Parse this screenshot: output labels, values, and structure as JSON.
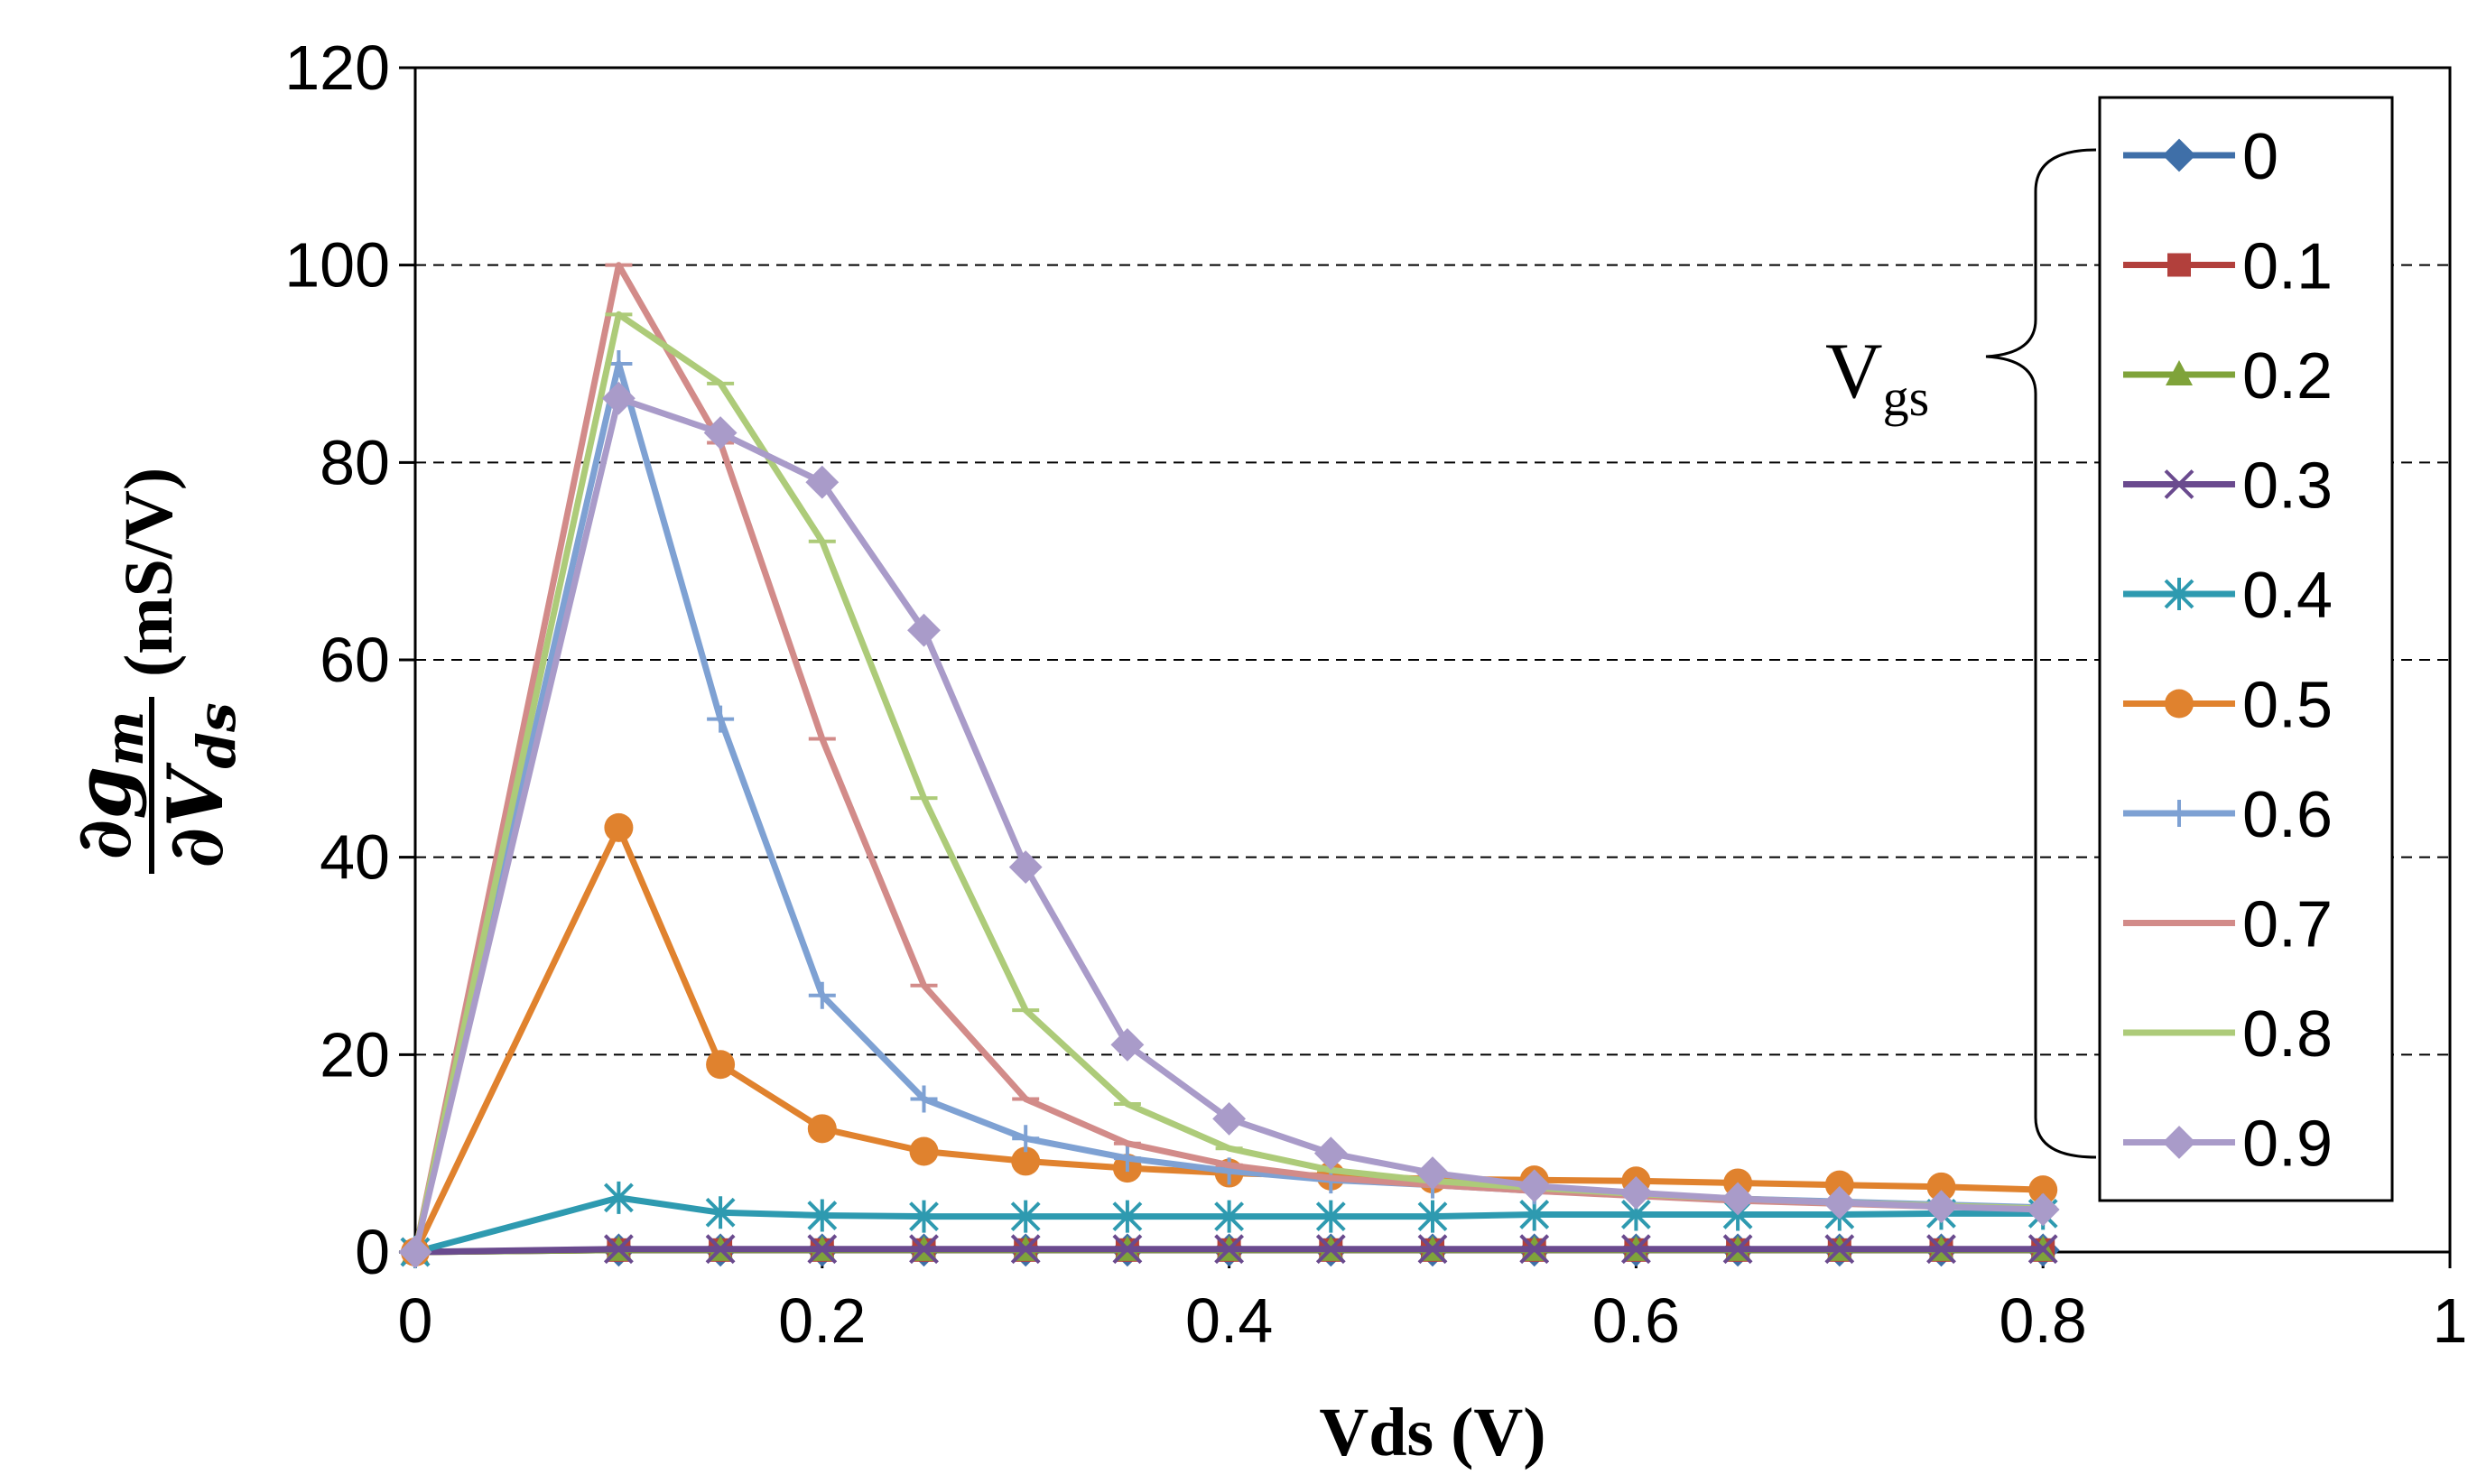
{
  "chart_data": {
    "type": "line",
    "title": "",
    "xlabel": "Vds (V)",
    "ylabel": {
      "numerator_symbol": "∂",
      "numerator_var": "g",
      "numerator_sub": "m",
      "denominator_symbol": "∂",
      "denominator_var": "V",
      "denominator_sub": "ds",
      "units": "(mS/V)"
    },
    "xlim": [
      0,
      1
    ],
    "ylim": [
      0,
      120
    ],
    "xticks": [
      "0",
      "0.2",
      "0.4",
      "0.6",
      "0.8",
      "1"
    ],
    "yticks": [
      "0",
      "20",
      "40",
      "60",
      "80",
      "100",
      "120"
    ],
    "grid": "horizontal dashed",
    "legend_position": "right",
    "legend_group_label": {
      "main": "V",
      "sub": "gs"
    },
    "x": [
      0,
      0.1,
      0.15,
      0.2,
      0.25,
      0.3,
      0.35,
      0.4,
      0.45,
      0.5,
      0.55,
      0.6,
      0.65,
      0.7,
      0.75,
      0.8
    ],
    "series": [
      {
        "name": "0",
        "color": "#3F6FA8",
        "marker": "diamond",
        "values": [
          0,
          0.2,
          0.2,
          0.2,
          0.2,
          0.2,
          0.2,
          0.2,
          0.2,
          0.2,
          0.2,
          0.2,
          0.2,
          0.2,
          0.2,
          0.2
        ]
      },
      {
        "name": "0.1",
        "color": "#B2403C",
        "marker": "square",
        "values": [
          0,
          0.2,
          0.2,
          0.2,
          0.2,
          0.2,
          0.2,
          0.2,
          0.2,
          0.2,
          0.2,
          0.2,
          0.2,
          0.2,
          0.2,
          0.2
        ]
      },
      {
        "name": "0.2",
        "color": "#7FA33A",
        "marker": "triangle",
        "values": [
          0,
          0.2,
          0.2,
          0.2,
          0.2,
          0.2,
          0.2,
          0.2,
          0.2,
          0.2,
          0.2,
          0.2,
          0.2,
          0.2,
          0.2,
          0.2
        ]
      },
      {
        "name": "0.3",
        "color": "#6A4A8E",
        "marker": "x",
        "values": [
          0,
          0.3,
          0.3,
          0.3,
          0.3,
          0.3,
          0.3,
          0.3,
          0.3,
          0.3,
          0.3,
          0.3,
          0.3,
          0.3,
          0.3,
          0.3
        ]
      },
      {
        "name": "0.4",
        "color": "#2E9AB0",
        "marker": "star",
        "values": [
          0,
          5.5,
          4,
          3.7,
          3.6,
          3.6,
          3.6,
          3.6,
          3.6,
          3.6,
          3.8,
          3.8,
          3.8,
          3.8,
          3.9,
          3.9
        ]
      },
      {
        "name": "0.5",
        "color": "#E0822E",
        "marker": "circle",
        "values": [
          0,
          43,
          19,
          12.5,
          10.2,
          9.2,
          8.5,
          8,
          7.7,
          7.4,
          7.3,
          7.2,
          7,
          6.8,
          6.6,
          6.3
        ]
      },
      {
        "name": "0.6",
        "color": "#7EA1D3",
        "marker": "plus",
        "values": [
          0,
          90,
          54,
          26,
          15.5,
          11.5,
          9.5,
          8.2,
          7.3,
          6.8,
          6.2,
          5.8,
          5.4,
          5.1,
          4.8,
          4.5
        ]
      },
      {
        "name": "0.7",
        "color": "#D28B89",
        "marker": "dash",
        "values": [
          0,
          100,
          82,
          52,
          27,
          15.5,
          11,
          8.8,
          7.5,
          6.8,
          6.2,
          5.7,
          5.2,
          4.9,
          4.6,
          4.4
        ]
      },
      {
        "name": "0.8",
        "color": "#ADCB79",
        "marker": "dash",
        "values": [
          0,
          95,
          88,
          72,
          46,
          24.5,
          15,
          10.5,
          8.3,
          7.2,
          6.5,
          5.9,
          5.4,
          5,
          4.7,
          4.4
        ]
      },
      {
        "name": "0.9",
        "color": "#A99BC9",
        "marker": "diamond",
        "values": [
          0,
          86.5,
          83,
          78,
          63,
          39,
          21,
          13.5,
          10,
          8,
          6.7,
          6,
          5.4,
          5,
          4.6,
          4.3
        ]
      }
    ]
  }
}
